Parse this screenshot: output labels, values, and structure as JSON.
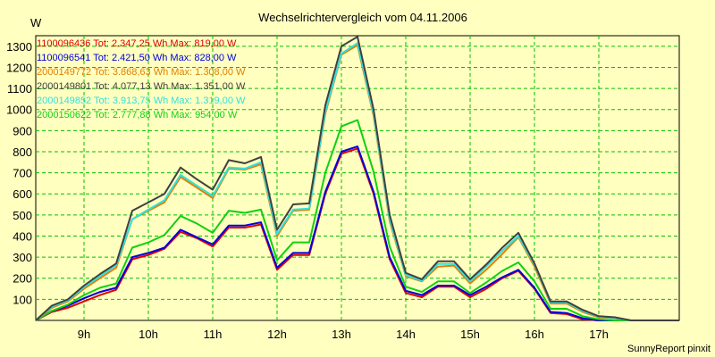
{
  "chart_data": {
    "type": "line",
    "title": "Wechselrichtervergleich vom 04.11.2006",
    "ylabel": "W",
    "xlabel": "",
    "ylim": [
      0,
      1350
    ],
    "xlim": [
      8.25,
      18.25
    ],
    "y_ticks": [
      100,
      200,
      300,
      400,
      500,
      600,
      700,
      800,
      900,
      1000,
      1100,
      1200,
      1300
    ],
    "x_ticks": [
      9,
      10,
      11,
      12,
      13,
      14,
      15,
      16,
      17
    ],
    "x_tick_labels": [
      "9h",
      "10h",
      "11h",
      "12h",
      "13h",
      "14h",
      "15h",
      "16h",
      "17h"
    ],
    "grid": true,
    "legend_position": "top-left",
    "x": [
      8.25,
      8.5,
      8.75,
      9.0,
      9.25,
      9.5,
      9.75,
      10.0,
      10.25,
      10.5,
      10.75,
      11.0,
      11.25,
      11.5,
      11.75,
      12.0,
      12.25,
      12.5,
      12.75,
      13.0,
      13.25,
      13.5,
      13.75,
      14.0,
      14.25,
      14.5,
      14.75,
      15.0,
      15.25,
      15.5,
      15.75,
      16.0,
      16.25,
      16.5,
      16.75,
      17.0,
      17.25,
      17.5,
      17.75,
      18.0,
      18.25
    ],
    "series": [
      {
        "name": "1100096436 Tot: 2.347,25 Wh Max: 819,00 W",
        "color": "#E00000",
        "values": [
          0,
          40,
          60,
          90,
          120,
          145,
          290,
          310,
          340,
          420,
          390,
          350,
          440,
          440,
          455,
          240,
          310,
          310,
          600,
          790,
          815,
          600,
          290,
          130,
          110,
          160,
          160,
          110,
          150,
          200,
          235,
          150,
          35,
          30,
          5,
          0,
          0,
          0,
          0,
          0,
          0
        ]
      },
      {
        "name": "1100096541 Tot: 2.421,50 Wh Max: 828,00 W",
        "color": "#0000E0",
        "values": [
          0,
          45,
          70,
          105,
          135,
          155,
          300,
          320,
          345,
          430,
          395,
          360,
          450,
          450,
          465,
          250,
          320,
          320,
          610,
          800,
          825,
          610,
          300,
          140,
          120,
          165,
          165,
          120,
          160,
          205,
          240,
          155,
          40,
          35,
          10,
          0,
          0,
          0,
          0,
          0,
          0
        ]
      },
      {
        "name": "2000149772 Tot: 3.868,63 Wh Max: 1.308,00 W",
        "color": "#E08000",
        "values": [
          0,
          60,
          90,
          150,
          200,
          250,
          480,
          520,
          560,
          680,
          630,
          580,
          720,
          715,
          740,
          400,
          520,
          525,
          980,
          1260,
          1305,
          970,
          470,
          210,
          185,
          255,
          260,
          175,
          240,
          315,
          395,
          255,
          80,
          80,
          40,
          15,
          10,
          0,
          0,
          0,
          0
        ]
      },
      {
        "name": "2000149801 Tot: 4.077,13 Wh Max: 1.351,00 W",
        "color": "#404040",
        "values": [
          0,
          70,
          100,
          165,
          220,
          270,
          520,
          560,
          600,
          725,
          670,
          620,
          760,
          745,
          775,
          430,
          550,
          555,
          1020,
          1300,
          1345,
          1000,
          500,
          225,
          195,
          280,
          280,
          195,
          265,
          345,
          415,
          270,
          90,
          90,
          50,
          20,
          15,
          0,
          0,
          0,
          0
        ]
      },
      {
        "name": "2000149852 Tot: 3.913,75 Wh Max: 1.319,00 W",
        "color": "#30E0E0",
        "values": [
          0,
          65,
          95,
          158,
          210,
          262,
          480,
          525,
          570,
          690,
          640,
          590,
          725,
          720,
          750,
          410,
          525,
          530,
          990,
          1265,
          1315,
          980,
          480,
          215,
          188,
          268,
          268,
          185,
          255,
          330,
          400,
          265,
          85,
          85,
          45,
          18,
          12,
          0,
          0,
          0,
          0
        ]
      },
      {
        "name": "2000150622 Tot: 2.777,88 Wh Max: 954,00 W",
        "color": "#10D010",
        "values": [
          0,
          45,
          75,
          120,
          155,
          175,
          345,
          370,
          405,
          495,
          460,
          415,
          520,
          510,
          525,
          285,
          370,
          370,
          700,
          920,
          950,
          705,
          350,
          160,
          135,
          185,
          185,
          130,
          180,
          235,
          275,
          185,
          55,
          55,
          20,
          5,
          0,
          0,
          0,
          0,
          0
        ]
      }
    ]
  },
  "footer": {
    "credit": "SunnyReport pinxit"
  }
}
